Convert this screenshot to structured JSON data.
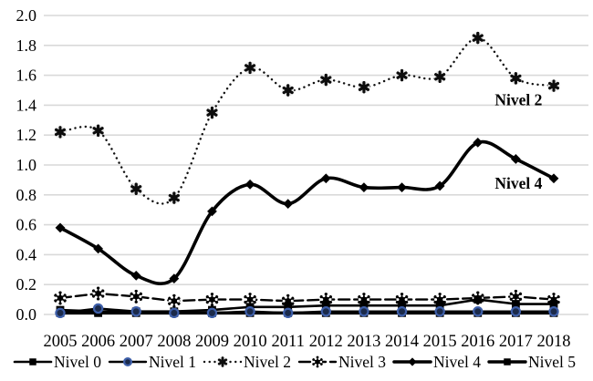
{
  "chart_data": {
    "type": "line",
    "title": "",
    "xlabel": "",
    "ylabel": "",
    "categories": [
      "2005",
      "2006",
      "2007",
      "2008",
      "2009",
      "2010",
      "2011",
      "2012",
      "2013",
      "2014",
      "2015",
      "2016",
      "2017",
      "2018"
    ],
    "ylim": [
      0.0,
      2.0
    ],
    "ytick_step": 0.2,
    "y_tick_labels": [
      "0.0",
      "0.2",
      "0.4",
      "0.6",
      "0.8",
      "1.0",
      "1.2",
      "1.4",
      "1.6",
      "1.8",
      "2.0"
    ],
    "grid": "horizontal-only",
    "grid_color": "#d9d9d9",
    "legend_position": "bottom",
    "series": [
      {
        "name": "Nivel 0",
        "marker": "square",
        "line": "solid",
        "smooth": false,
        "width": 2.6,
        "color": "#000000",
        "values": [
          0.03,
          0.02,
          0.02,
          0.02,
          0.03,
          0.05,
          0.05,
          0.06,
          0.06,
          0.06,
          0.06,
          0.1,
          0.07,
          0.07
        ]
      },
      {
        "name": "Nivel 1",
        "marker": "circle",
        "line": "solid",
        "smooth": false,
        "width": 2.4,
        "color": "#000000",
        "marker_fill": "#1b2a4a",
        "marker_stroke": "#3e5fa9",
        "values": [
          0.01,
          0.04,
          0.02,
          0.01,
          0.01,
          0.02,
          0.01,
          0.02,
          0.02,
          0.02,
          0.02,
          0.02,
          0.02,
          0.02
        ]
      },
      {
        "name": "Nivel 2",
        "marker": "star6",
        "line": "dotted",
        "smooth": true,
        "width": 2.4,
        "color": "#111111",
        "values": [
          1.22,
          1.23,
          0.84,
          0.78,
          1.35,
          1.65,
          1.5,
          1.57,
          1.52,
          1.6,
          1.59,
          1.85,
          1.58,
          1.53
        ]
      },
      {
        "name": "Nivel 3",
        "marker": "star-dots",
        "line": "dashed",
        "smooth": false,
        "width": 2.4,
        "color": "#000000",
        "values": [
          0.11,
          0.14,
          0.12,
          0.09,
          0.1,
          0.1,
          0.09,
          0.1,
          0.1,
          0.1,
          0.1,
          0.11,
          0.12,
          0.1
        ]
      },
      {
        "name": "Nivel 4",
        "marker": "diamond",
        "line": "solid",
        "smooth": true,
        "width": 3.6,
        "color": "#000000",
        "values": [
          0.58,
          0.44,
          0.26,
          0.24,
          0.69,
          0.87,
          0.74,
          0.91,
          0.85,
          0.85,
          0.86,
          1.15,
          1.04,
          0.91
        ]
      },
      {
        "name": "Nivel 5",
        "marker": "square",
        "line": "solid",
        "smooth": false,
        "width": 3.4,
        "color": "#000000",
        "values": [
          0.01,
          0.01,
          0.01,
          0.01,
          0.01,
          0.01,
          0.01,
          0.01,
          0.01,
          0.01,
          0.01,
          0.01,
          0.01,
          0.01
        ]
      }
    ],
    "annotations": [
      {
        "text": "Nivel 2",
        "x_index": 12,
        "value": 1.4
      },
      {
        "text": "Nivel 4",
        "x_index": 12,
        "value": 0.84
      }
    ]
  }
}
